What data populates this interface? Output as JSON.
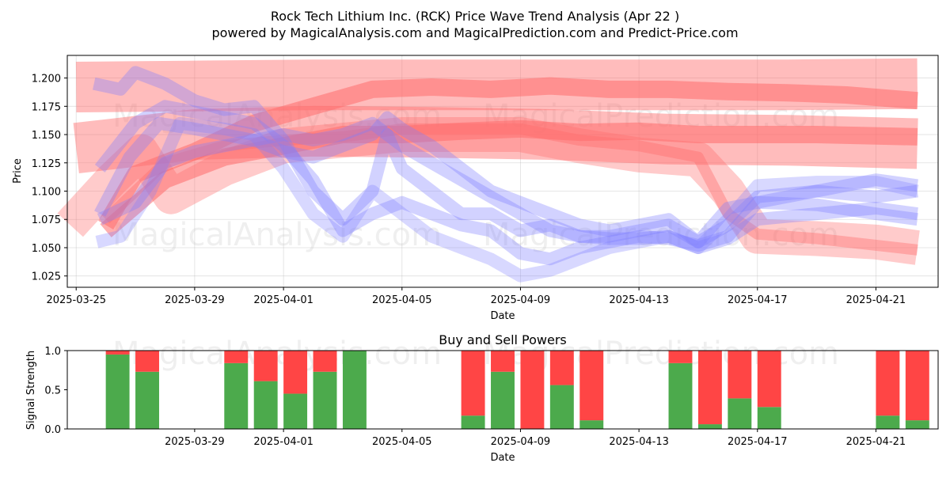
{
  "chart_data": [
    {
      "type": "line",
      "title_line1": "Rock Tech Lithium Inc. (RCK) Price Wave Trend Analysis (Apr 22 )",
      "title_line2": "powered by MagicalAnalysis.com and MagicalPrediction.com and Predict-Price.com",
      "xlabel": "Date",
      "ylabel": "Price",
      "ylim": [
        1.015,
        1.22
      ],
      "xlim_days": [
        -0.3,
        29.1
      ],
      "x_ticks": [
        {
          "day": 0,
          "label": "2025-03-25"
        },
        {
          "day": 4,
          "label": "2025-03-29"
        },
        {
          "day": 7,
          "label": "2025-04-01"
        },
        {
          "day": 11,
          "label": "2025-04-05"
        },
        {
          "day": 15,
          "label": "2025-04-09"
        },
        {
          "day": 19,
          "label": "2025-04-13"
        },
        {
          "day": 23,
          "label": "2025-04-17"
        },
        {
          "day": 27,
          "label": "2025-04-21"
        }
      ],
      "y_ticks": [
        "1.025",
        "1.050",
        "1.075",
        "1.100",
        "1.125",
        "1.150",
        "1.175",
        "1.200"
      ],
      "watermarks": [
        "MagicalAnalysis.com",
        "MagicalPrediction.com",
        "MagicalAnalysis.com",
        "MagicalPrediction.com"
      ],
      "colors": {
        "red_band": "#ff6b6b",
        "blue_band": "#7f7fff"
      },
      "red_series": [
        {
          "name": "red-band-1",
          "opacity": 0.45,
          "x": [
            0,
            4,
            8,
            12,
            16,
            20,
            24,
            28.4
          ],
          "y": [
            1.192,
            1.193,
            1.194,
            1.194,
            1.194,
            1.194,
            1.194,
            1.195
          ]
        },
        {
          "name": "red-band-2",
          "opacity": 0.45,
          "x": [
            0,
            4,
            8,
            12,
            16,
            20,
            24,
            28.4
          ],
          "y": [
            1.138,
            1.15,
            1.153,
            1.152,
            1.15,
            1.146,
            1.145,
            1.142
          ]
        },
        {
          "name": "red-band-3",
          "opacity": 0.35,
          "x": [
            -0.2,
            1.2,
            2.2,
            3.2,
            5,
            7,
            9,
            11,
            13,
            15,
            17,
            19,
            21,
            22,
            23,
            25,
            27,
            28.4
          ],
          "y": [
            1.07,
            1.11,
            1.135,
            1.095,
            1.12,
            1.14,
            1.145,
            1.15,
            1.15,
            1.15,
            1.14,
            1.132,
            1.128,
            1.1,
            1.06,
            1.058,
            1.055,
            1.05
          ]
        },
        {
          "name": "red-band-4",
          "opacity": 0.55,
          "x": [
            1,
            2,
            4,
            6,
            8,
            10,
            12,
            14,
            16,
            18,
            20,
            22,
            24,
            26,
            28.4
          ],
          "y": [
            1.07,
            1.115,
            1.135,
            1.16,
            1.175,
            1.19,
            1.192,
            1.19,
            1.193,
            1.19,
            1.19,
            1.188,
            1.187,
            1.185,
            1.18
          ]
        },
        {
          "name": "red-band-5",
          "opacity": 0.55,
          "x": [
            1,
            3,
            5,
            7,
            9,
            11,
            13,
            15,
            17,
            19,
            21,
            23,
            25,
            28.4
          ],
          "y": [
            1.065,
            1.11,
            1.13,
            1.14,
            1.15,
            1.15,
            1.153,
            1.155,
            1.152,
            1.153,
            1.15,
            1.15,
            1.15,
            1.148
          ]
        },
        {
          "name": "red-band-6",
          "opacity": 0.4,
          "x": [
            1,
            3,
            5,
            7,
            9,
            11,
            13,
            15,
            17,
            19,
            21,
            22,
            23,
            25,
            28.4
          ],
          "y": [
            1.075,
            1.125,
            1.14,
            1.145,
            1.148,
            1.155,
            1.155,
            1.155,
            1.145,
            1.14,
            1.13,
            1.08,
            1.062,
            1.058,
            1.048
          ]
        }
      ],
      "blue_series": [
        {
          "name": "blue-band-1",
          "opacity": 0.35,
          "x": [
            0.6,
            1.5,
            2,
            3,
            4,
            5,
            6,
            7,
            8,
            9,
            10,
            10.5,
            11,
            12,
            13,
            14,
            15,
            16,
            17,
            18,
            19,
            20,
            21,
            22,
            23,
            25,
            27,
            28.4
          ],
          "y": [
            1.195,
            1.19,
            1.205,
            1.195,
            1.18,
            1.172,
            1.175,
            1.145,
            1.1,
            1.075,
            1.1,
            1.15,
            1.12,
            1.1,
            1.08,
            1.08,
            1.065,
            1.07,
            1.06,
            1.06,
            1.065,
            1.07,
            1.055,
            1.07,
            1.095,
            1.1,
            1.095,
            1.1
          ]
        },
        {
          "name": "blue-band-2",
          "opacity": 0.35,
          "x": [
            0.8,
            2,
            3,
            4,
            5,
            6,
            7,
            8,
            9,
            10,
            11,
            12,
            13,
            14,
            15,
            16,
            17,
            18,
            19,
            20,
            21,
            22,
            23,
            25,
            27,
            28.4
          ],
          "y": [
            1.12,
            1.16,
            1.175,
            1.17,
            1.165,
            1.16,
            1.14,
            1.11,
            1.065,
            1.08,
            1.09,
            1.08,
            1.07,
            1.065,
            1.045,
            1.04,
            1.05,
            1.055,
            1.06,
            1.058,
            1.052,
            1.06,
            1.09,
            1.1,
            1.11,
            1.105
          ]
        },
        {
          "name": "blue-band-3",
          "opacity": 0.3,
          "x": [
            0.7,
            1.5,
            2.5,
            3.5,
            5,
            6,
            7,
            8,
            9,
            10,
            11,
            12,
            13,
            14,
            15,
            16,
            17,
            18,
            19,
            20,
            21,
            22,
            23,
            25,
            27,
            28.4
          ],
          "y": [
            1.055,
            1.06,
            1.1,
            1.16,
            1.155,
            1.15,
            1.12,
            1.08,
            1.06,
            1.1,
            1.08,
            1.06,
            1.05,
            1.04,
            1.025,
            1.03,
            1.04,
            1.05,
            1.055,
            1.06,
            1.05,
            1.075,
            1.105,
            1.108,
            1.108,
            1.1
          ]
        },
        {
          "name": "blue-band-4",
          "opacity": 0.35,
          "x": [
            0.8,
            1.8,
            2.8,
            4,
            5,
            6,
            7,
            8,
            9,
            10,
            10.5,
            11,
            12,
            13,
            14,
            15,
            16,
            17,
            18,
            19,
            20,
            21,
            22,
            23,
            25,
            27,
            28.4
          ],
          "y": [
            1.08,
            1.13,
            1.16,
            1.155,
            1.15,
            1.145,
            1.135,
            1.13,
            1.14,
            1.15,
            1.165,
            1.155,
            1.14,
            1.12,
            1.1,
            1.09,
            1.08,
            1.07,
            1.065,
            1.07,
            1.075,
            1.055,
            1.085,
            1.09,
            1.088,
            1.08,
            1.075
          ]
        },
        {
          "name": "blue-band-5",
          "opacity": 0.35,
          "x": [
            0.8,
            2,
            3,
            4,
            5,
            6,
            7,
            8,
            9,
            10,
            11,
            12,
            13,
            14,
            15,
            16,
            17,
            18,
            19,
            20,
            21,
            22,
            23,
            25,
            27,
            28.4
          ],
          "y": [
            1.075,
            1.09,
            1.125,
            1.135,
            1.14,
            1.145,
            1.15,
            1.145,
            1.15,
            1.16,
            1.14,
            1.125,
            1.11,
            1.095,
            1.08,
            1.065,
            1.06,
            1.058,
            1.058,
            1.06,
            1.05,
            1.058,
            1.075,
            1.08,
            1.085,
            1.08
          ]
        }
      ]
    },
    {
      "type": "bar",
      "title": "Buy and Sell Powers",
      "xlabel": "Date",
      "ylabel": "Signal Strength",
      "ylim": [
        0,
        1
      ],
      "y_ticks": [
        "0.0",
        "0.5",
        "1.0"
      ],
      "x_ticks": [
        {
          "day": 4,
          "label": "2025-03-29"
        },
        {
          "day": 7,
          "label": "2025-04-01"
        },
        {
          "day": 11,
          "label": "2025-04-05"
        },
        {
          "day": 15,
          "label": "2025-04-09"
        },
        {
          "day": 19,
          "label": "2025-04-13"
        },
        {
          "day": 23,
          "label": "2025-04-17"
        },
        {
          "day": 27,
          "label": "2025-04-21"
        }
      ],
      "watermarks": [
        "MagicalAnalysis.com",
        "MagicalPrediction.com"
      ],
      "colors": {
        "buy": "#4caa4c",
        "sell": "#ff4545"
      },
      "series": [
        {
          "name": "Buy",
          "days": [
            1.4,
            2.4,
            5.4,
            6.4,
            7.4,
            8.4,
            9.4,
            13.4,
            14.4,
            15.4,
            16.4,
            17.4,
            20.4,
            21.4,
            22.4,
            23.4,
            27.4,
            28.4
          ],
          "values": [
            0.95,
            0.73,
            0.84,
            0.61,
            0.45,
            0.73,
            1.0,
            0.17,
            0.73,
            0.0,
            0.56,
            0.11,
            0.84,
            0.06,
            0.39,
            0.28,
            0.17,
            0.11
          ]
        },
        {
          "name": "Sell",
          "days": [
            1.4,
            2.4,
            5.4,
            6.4,
            7.4,
            8.4,
            9.4,
            13.4,
            14.4,
            15.4,
            16.4,
            17.4,
            20.4,
            21.4,
            22.4,
            23.4,
            27.4,
            28.4
          ],
          "values": [
            0.05,
            0.27,
            0.16,
            0.39,
            0.55,
            0.27,
            0.0,
            0.83,
            0.27,
            1.0,
            0.44,
            0.89,
            0.16,
            0.94,
            0.61,
            0.72,
            0.83,
            0.89
          ]
        }
      ]
    }
  ]
}
